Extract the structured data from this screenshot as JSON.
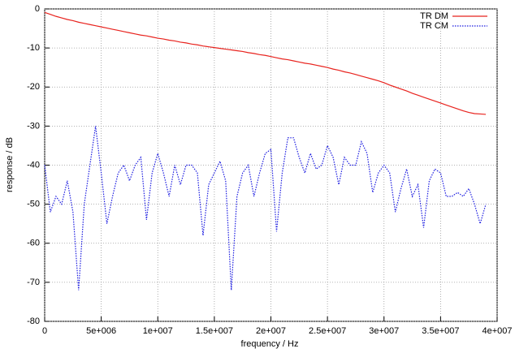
{
  "chart_data": {
    "type": "line",
    "xlabel": "frequency / Hz",
    "ylabel": "response / dB",
    "x": [
      0,
      500000,
      1000000,
      1500000,
      2000000,
      2500000,
      3000000,
      3500000,
      4000000,
      4500000,
      5000000,
      5500000,
      6000000,
      6500000,
      7000000,
      7500000,
      8000000,
      8500000,
      9000000,
      9500000,
      10000000,
      10500000,
      11000000,
      11500000,
      12000000,
      12500000,
      13000000,
      13500000,
      14000000,
      14500000,
      15000000,
      15500000,
      16000000,
      16500000,
      17000000,
      17500000,
      18000000,
      18500000,
      19000000,
      19500000,
      20000000,
      20500000,
      21000000,
      21500000,
      22000000,
      22500000,
      23000000,
      23500000,
      24000000,
      24500000,
      25000000,
      25500000,
      26000000,
      26500000,
      27000000,
      27500000,
      28000000,
      28500000,
      29000000,
      29500000,
      30000000,
      30500000,
      31000000,
      31500000,
      32000000,
      32500000,
      33000000,
      33500000,
      34000000,
      34500000,
      35000000,
      35500000,
      36000000,
      36500000,
      37000000,
      37500000,
      38000000,
      38500000,
      39000000
    ],
    "series": [
      {
        "name": "TR DM",
        "color": "#e8231e",
        "style": "solid",
        "values": [
          -0.9,
          -1.4,
          -1.9,
          -2.3,
          -2.7,
          -3.0,
          -3.4,
          -3.7,
          -4.0,
          -4.3,
          -4.6,
          -4.9,
          -5.2,
          -5.5,
          -5.8,
          -6.1,
          -6.4,
          -6.7,
          -6.9,
          -7.2,
          -7.5,
          -7.7,
          -8.0,
          -8.2,
          -8.5,
          -8.7,
          -9.0,
          -9.2,
          -9.5,
          -9.7,
          -9.9,
          -10.1,
          -10.3,
          -10.5,
          -10.7,
          -10.9,
          -11.2,
          -11.4,
          -11.7,
          -11.9,
          -12.2,
          -12.5,
          -12.8,
          -13.0,
          -13.3,
          -13.6,
          -13.9,
          -14.1,
          -14.4,
          -14.7,
          -15.0,
          -15.4,
          -15.7,
          -16.1,
          -16.4,
          -16.8,
          -17.2,
          -17.6,
          -18.0,
          -18.4,
          -18.9,
          -19.5,
          -20.0,
          -20.5,
          -21.0,
          -21.6,
          -22.1,
          -22.6,
          -23.1,
          -23.6,
          -24.1,
          -24.6,
          -25.1,
          -25.6,
          -26.1,
          -26.5,
          -26.8,
          -26.9,
          -27.0
        ]
      },
      {
        "name": "TR CM",
        "color": "#1a1ae0",
        "style": "dotted",
        "values": [
          -40,
          -52,
          -48,
          -50,
          -44,
          -52,
          -72,
          -50,
          -40,
          -30,
          -42,
          -55,
          -48,
          -42,
          -40,
          -44,
          -40,
          -38,
          -54,
          -42,
          -37,
          -42,
          -48,
          -40,
          -45,
          -40,
          -40,
          -42,
          -58,
          -45,
          -42,
          -39,
          -44,
          -72,
          -48,
          -42,
          -40,
          -48,
          -42,
          -37,
          -36,
          -57,
          -42,
          -33,
          -33,
          -38,
          -42,
          -37,
          -41,
          -40,
          -35,
          -38,
          -45,
          -38,
          -40,
          -40,
          -34,
          -37,
          -47,
          -42,
          -40,
          -42,
          -52,
          -46,
          -41,
          -48,
          -45,
          -56,
          -44,
          -41,
          -42,
          -48,
          -48,
          -47,
          -48,
          -46,
          -50,
          -55,
          -50
        ]
      }
    ],
    "xlim": [
      0,
      40000000
    ],
    "xticks": [
      0,
      {
        "value": 5000000,
        "label": "5e+006"
      },
      {
        "value": 10000000,
        "label": "1e+007"
      },
      {
        "value": 15000000,
        "label": "1.5e+007"
      },
      {
        "value": 20000000,
        "label": "2e+007"
      },
      {
        "value": 25000000,
        "label": "2.5e+007"
      },
      {
        "value": 30000000,
        "label": "3e+007"
      },
      {
        "value": 35000000,
        "label": "3.5e+007"
      },
      {
        "value": 40000000,
        "label": "4e+007"
      }
    ],
    "ylim": [
      -80,
      0
    ],
    "yticks": [
      0,
      -10,
      -20,
      -30,
      -40,
      -50,
      -60,
      -70,
      -80
    ],
    "grid": true,
    "legend": "top-right"
  }
}
